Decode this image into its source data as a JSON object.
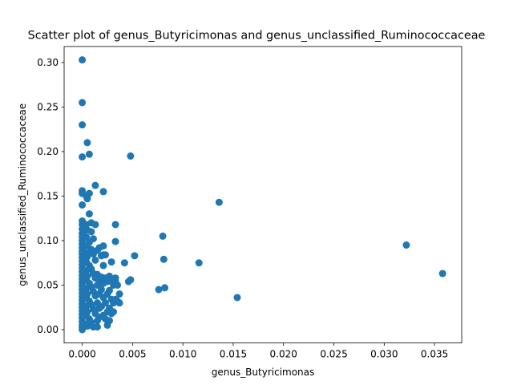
{
  "chart_data": {
    "type": "scatter",
    "title": "Scatter plot of genus_Butyricimonas and genus_unclassified_Ruminococcaceae",
    "xlabel": "genus_Butyricimonas",
    "ylabel": "genus_unclassified_Ruminococcaceae",
    "xlim": [
      -0.0018,
      0.0377
    ],
    "ylim": [
      -0.015,
      0.318
    ],
    "xticks": [
      {
        "value": 0.0,
        "label": "0.000"
      },
      {
        "value": 0.005,
        "label": "0.005"
      },
      {
        "value": 0.01,
        "label": "0.010"
      },
      {
        "value": 0.015,
        "label": "0.015"
      },
      {
        "value": 0.02,
        "label": "0.020"
      },
      {
        "value": 0.025,
        "label": "0.025"
      },
      {
        "value": 0.03,
        "label": "0.030"
      },
      {
        "value": 0.035,
        "label": "0.035"
      }
    ],
    "yticks": [
      {
        "value": 0.0,
        "label": "0.00"
      },
      {
        "value": 0.05,
        "label": "0.05"
      },
      {
        "value": 0.1,
        "label": "0.10"
      },
      {
        "value": 0.15,
        "label": "0.15"
      },
      {
        "value": 0.2,
        "label": "0.20"
      },
      {
        "value": 0.25,
        "label": "0.25"
      },
      {
        "value": 0.3,
        "label": "0.30"
      }
    ],
    "grid": false,
    "marker_color": "#1f77b4",
    "points": [
      [
        0.0,
        0.303
      ],
      [
        0.0,
        0.255
      ],
      [
        0.0,
        0.23
      ],
      [
        0.0,
        0.194
      ],
      [
        0.0,
        0.156
      ],
      [
        0.0,
        0.153
      ],
      [
        0.0,
        0.14
      ],
      [
        0.0,
        0.122
      ],
      [
        0.0,
        0.118
      ],
      [
        0.0,
        0.113
      ],
      [
        0.0,
        0.108
      ],
      [
        0.0,
        0.104
      ],
      [
        0.0,
        0.1
      ],
      [
        0.0,
        0.096
      ],
      [
        0.0,
        0.092
      ],
      [
        0.0,
        0.088
      ],
      [
        0.0,
        0.085
      ],
      [
        0.0,
        0.081
      ],
      [
        0.0,
        0.077
      ],
      [
        0.0,
        0.073
      ],
      [
        0.0,
        0.069
      ],
      [
        0.0,
        0.065
      ],
      [
        0.0,
        0.061
      ],
      [
        0.0,
        0.057
      ],
      [
        0.0,
        0.053
      ],
      [
        0.0,
        0.049
      ],
      [
        0.0,
        0.045
      ],
      [
        0.0,
        0.041
      ],
      [
        0.0,
        0.037
      ],
      [
        0.0,
        0.033
      ],
      [
        0.0,
        0.029
      ],
      [
        0.0,
        0.025
      ],
      [
        0.0,
        0.021
      ],
      [
        0.0,
        0.017
      ],
      [
        0.0,
        0.013
      ],
      [
        0.0,
        0.009
      ],
      [
        0.0,
        0.005
      ],
      [
        0.0,
        0.002
      ],
      [
        0.0,
        0.0
      ],
      [
        0.0004,
        0.15
      ],
      [
        0.0004,
        0.118
      ],
      [
        0.0004,
        0.104
      ],
      [
        0.0004,
        0.094
      ],
      [
        0.0004,
        0.086
      ],
      [
        0.0004,
        0.076
      ],
      [
        0.0004,
        0.066
      ],
      [
        0.0004,
        0.056
      ],
      [
        0.0004,
        0.046
      ],
      [
        0.0004,
        0.036
      ],
      [
        0.0004,
        0.026
      ],
      [
        0.0004,
        0.016
      ],
      [
        0.0004,
        0.006
      ],
      [
        0.0005,
        0.21
      ],
      [
        0.0005,
        0.147
      ],
      [
        0.0005,
        0.112
      ],
      [
        0.0005,
        0.082
      ],
      [
        0.0005,
        0.06
      ],
      [
        0.0005,
        0.04
      ],
      [
        0.0005,
        0.02
      ],
      [
        0.0005,
        0.004
      ],
      [
        0.0007,
        0.197
      ],
      [
        0.0007,
        0.153
      ],
      [
        0.0007,
        0.13
      ],
      [
        0.0007,
        0.098
      ],
      [
        0.0007,
        0.086
      ],
      [
        0.0007,
        0.072
      ],
      [
        0.0007,
        0.052
      ],
      [
        0.0007,
        0.032
      ],
      [
        0.0007,
        0.012
      ],
      [
        0.0009,
        0.12
      ],
      [
        0.0009,
        0.11
      ],
      [
        0.0009,
        0.09
      ],
      [
        0.0009,
        0.068
      ],
      [
        0.0009,
        0.048
      ],
      [
        0.0009,
        0.028
      ],
      [
        0.0009,
        0.008
      ],
      [
        0.0011,
        0.102
      ],
      [
        0.0011,
        0.085
      ],
      [
        0.0011,
        0.063
      ],
      [
        0.0011,
        0.043
      ],
      [
        0.0011,
        0.023
      ],
      [
        0.0011,
        0.003
      ],
      [
        0.0013,
        0.162
      ],
      [
        0.0013,
        0.118
      ],
      [
        0.0013,
        0.078
      ],
      [
        0.0013,
        0.058
      ],
      [
        0.0013,
        0.038
      ],
      [
        0.0013,
        0.018
      ],
      [
        0.0015,
        0.089
      ],
      [
        0.0015,
        0.062
      ],
      [
        0.0015,
        0.05
      ],
      [
        0.0015,
        0.03
      ],
      [
        0.0015,
        0.01
      ],
      [
        0.0015,
        0.003
      ],
      [
        0.0017,
        0.092
      ],
      [
        0.0017,
        0.055
      ],
      [
        0.0017,
        0.04
      ],
      [
        0.0017,
        0.024
      ],
      [
        0.0017,
        0.014
      ],
      [
        0.0019,
        0.083
      ],
      [
        0.0019,
        0.059
      ],
      [
        0.0019,
        0.045
      ],
      [
        0.0019,
        0.026
      ],
      [
        0.0021,
        0.155
      ],
      [
        0.0021,
        0.094
      ],
      [
        0.0021,
        0.084
      ],
      [
        0.0021,
        0.072
      ],
      [
        0.0021,
        0.052
      ],
      [
        0.0021,
        0.036
      ],
      [
        0.0021,
        0.016
      ],
      [
        0.0023,
        0.084
      ],
      [
        0.0023,
        0.058
      ],
      [
        0.0023,
        0.03
      ],
      [
        0.0023,
        0.012
      ],
      [
        0.0025,
        0.054
      ],
      [
        0.0025,
        0.04
      ],
      [
        0.0025,
        0.02
      ],
      [
        0.0025,
        0.005
      ],
      [
        0.0027,
        0.06
      ],
      [
        0.0027,
        0.044
      ],
      [
        0.0027,
        0.024
      ],
      [
        0.0027,
        0.01
      ],
      [
        0.0029,
        0.076
      ],
      [
        0.0029,
        0.056
      ],
      [
        0.0029,
        0.034
      ],
      [
        0.0029,
        0.018
      ],
      [
        0.0031,
        0.05
      ],
      [
        0.0031,
        0.03
      ],
      [
        0.0031,
        0.02
      ],
      [
        0.0033,
        0.118
      ],
      [
        0.0033,
        0.099
      ],
      [
        0.0033,
        0.058
      ],
      [
        0.0033,
        0.054
      ],
      [
        0.0033,
        0.034
      ],
      [
        0.0035,
        0.05
      ],
      [
        0.0035,
        0.032
      ],
      [
        0.0037,
        0.04
      ],
      [
        0.0037,
        0.03
      ],
      [
        0.0042,
        0.075
      ],
      [
        0.0046,
        0.054
      ],
      [
        0.0048,
        0.195
      ],
      [
        0.0048,
        0.056
      ],
      [
        0.0052,
        0.083
      ],
      [
        0.0076,
        0.045
      ],
      [
        0.008,
        0.105
      ],
      [
        0.0081,
        0.079
      ],
      [
        0.0082,
        0.047
      ],
      [
        0.0116,
        0.075
      ],
      [
        0.0136,
        0.143
      ],
      [
        0.0154,
        0.036
      ],
      [
        0.0322,
        0.095
      ],
      [
        0.0358,
        0.063
      ]
    ]
  }
}
